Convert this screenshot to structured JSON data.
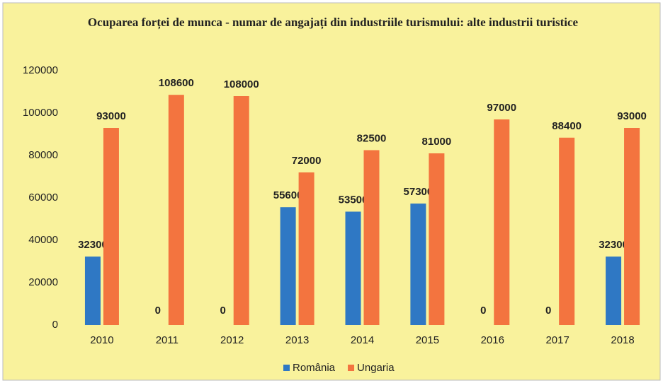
{
  "chart_data": {
    "type": "bar",
    "title": "Ocuparea forței de munca - numar de angajați din industriile turismului: alte industrii turistice",
    "categories": [
      "2010",
      "2011",
      "2012",
      "2013",
      "2014",
      "2015",
      "2016",
      "2017",
      "2018"
    ],
    "series": [
      {
        "name": "România",
        "color": "#2f78c4",
        "values": [
          32300,
          0,
          0,
          55600,
          53500,
          57300,
          0,
          0,
          32300
        ]
      },
      {
        "name": "Ungaria",
        "color": "#f3743f",
        "values": [
          93000,
          108600,
          108000,
          72000,
          82500,
          81000,
          97000,
          88400,
          93000
        ]
      }
    ],
    "ylim": [
      0,
      120000
    ],
    "yticks": [
      0,
      20000,
      40000,
      60000,
      80000,
      100000,
      120000
    ],
    "grid": false,
    "legend": "bottom"
  }
}
